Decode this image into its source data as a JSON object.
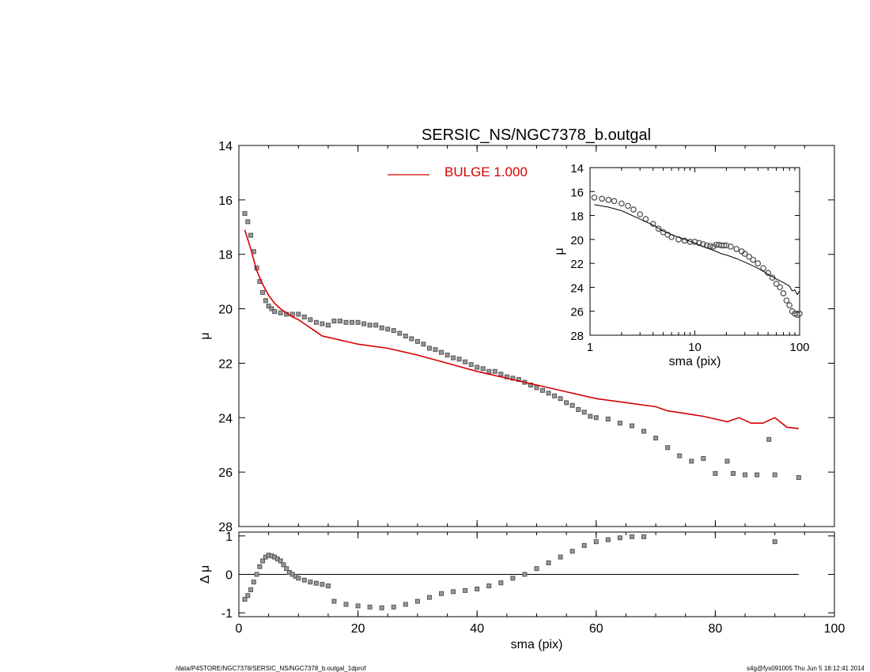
{
  "title": "SERSIC_NS/NGC7378_b.outgal",
  "footer": {
    "left": "/data/P4STORE/NGC7378/SERSIC_NS/NGC7378_b.outgal_1dprof",
    "right": "s4g@fys091005  Thu Jun  5 18:12:41 2014"
  },
  "colors": {
    "model": "#d40000",
    "data": "#555555",
    "axis": "#000000"
  },
  "chart_data": [
    {
      "id": "main",
      "type": "scatter",
      "xlabel": "sma (pix)",
      "ylabel": "μ",
      "xlim": [
        0,
        100
      ],
      "ylim": [
        28,
        14
      ],
      "xticks": [
        0,
        20,
        40,
        60,
        80,
        100
      ],
      "yticks": [
        14,
        16,
        18,
        20,
        22,
        24,
        26,
        28
      ],
      "legend": {
        "position": "top-center",
        "label": "BULGE  1.000"
      },
      "series": [
        {
          "role": "data",
          "style": "square-markers",
          "x": [
            1,
            1.5,
            2,
            2.5,
            3,
            3.5,
            4,
            4.5,
            5,
            5.5,
            6,
            7,
            8,
            9,
            10,
            11,
            12,
            13,
            14,
            15,
            16,
            17,
            18,
            19,
            20,
            21,
            22,
            23,
            24,
            25,
            26,
            27,
            28,
            29,
            30,
            31,
            32,
            33,
            34,
            35,
            36,
            37,
            38,
            39,
            40,
            41,
            42,
            43,
            44,
            45,
            46,
            47,
            48,
            49,
            50,
            51,
            52,
            53,
            54,
            55,
            56,
            57,
            58,
            59,
            60,
            62,
            64,
            66,
            68,
            70,
            72,
            74,
            76,
            78,
            80,
            82,
            83,
            85,
            87,
            89,
            90,
            94
          ],
          "y": [
            16.5,
            16.8,
            17.3,
            17.9,
            18.5,
            19.0,
            19.4,
            19.7,
            19.9,
            20.0,
            20.1,
            20.15,
            20.2,
            20.2,
            20.2,
            20.3,
            20.4,
            20.5,
            20.55,
            20.6,
            20.45,
            20.45,
            20.5,
            20.5,
            20.5,
            20.55,
            20.6,
            20.6,
            20.7,
            20.75,
            20.8,
            20.9,
            21.0,
            21.1,
            21.2,
            21.3,
            21.45,
            21.5,
            21.6,
            21.7,
            21.8,
            21.85,
            21.95,
            22.05,
            22.15,
            22.2,
            22.3,
            22.3,
            22.4,
            22.5,
            22.55,
            22.6,
            22.7,
            22.8,
            22.9,
            23.0,
            23.1,
            23.2,
            23.3,
            23.45,
            23.55,
            23.7,
            23.8,
            23.95,
            24.0,
            24.05,
            24.2,
            24.3,
            24.5,
            24.75,
            25.1,
            25.4,
            25.6,
            25.5,
            26.05,
            25.6,
            26.05,
            26.1,
            26.1,
            24.8,
            26.1,
            26.2
          ]
        },
        {
          "role": "model",
          "style": "line",
          "x": [
            1,
            2,
            3,
            4,
            5,
            6,
            7,
            8,
            9,
            10,
            11,
            12,
            13,
            14,
            15,
            16,
            17,
            18,
            19,
            20,
            25,
            30,
            35,
            40,
            45,
            50,
            55,
            60,
            65,
            70,
            72,
            75,
            78,
            80,
            82,
            84,
            86,
            88,
            90,
            92,
            94
          ],
          "y": [
            17.1,
            17.8,
            18.6,
            19.1,
            19.5,
            19.8,
            20.0,
            20.15,
            20.3,
            20.4,
            20.55,
            20.7,
            20.85,
            21.0,
            21.05,
            21.1,
            21.15,
            21.2,
            21.25,
            21.3,
            21.45,
            21.7,
            22.0,
            22.3,
            22.55,
            22.8,
            23.05,
            23.3,
            23.45,
            23.6,
            23.75,
            23.85,
            23.95,
            24.05,
            24.15,
            24.0,
            24.2,
            24.2,
            24.0,
            24.35,
            24.4
          ]
        }
      ]
    },
    {
      "id": "residual",
      "type": "scatter",
      "xlabel": "sma (pix)",
      "ylabel": "Δ μ",
      "xlim": [
        0,
        100
      ],
      "ylim": [
        -1.1,
        1.1
      ],
      "xticks": [
        0,
        20,
        40,
        60,
        80,
        100
      ],
      "yticks": [
        1,
        0,
        -1
      ],
      "zero_line": true,
      "series": [
        {
          "role": "residual",
          "style": "square-markers",
          "x": [
            1,
            1.5,
            2,
            2.5,
            3,
            3.5,
            4,
            4.5,
            5,
            5.5,
            6,
            6.5,
            7,
            7.5,
            8,
            8.5,
            9,
            9.5,
            10,
            11,
            12,
            13,
            14,
            15,
            16,
            18,
            20,
            22,
            24,
            26,
            28,
            30,
            32,
            34,
            36,
            38,
            40,
            42,
            44,
            46,
            48,
            50,
            52,
            54,
            56,
            58,
            60,
            62,
            64,
            66,
            68,
            90
          ],
          "y": [
            -0.65,
            -0.55,
            -0.4,
            -0.2,
            0,
            0.2,
            0.35,
            0.45,
            0.5,
            0.48,
            0.45,
            0.4,
            0.35,
            0.25,
            0.15,
            0.05,
            0,
            -0.05,
            -0.1,
            -0.15,
            -0.2,
            -0.23,
            -0.26,
            -0.3,
            -0.7,
            -0.78,
            -0.82,
            -0.85,
            -0.87,
            -0.85,
            -0.78,
            -0.7,
            -0.6,
            -0.5,
            -0.45,
            -0.42,
            -0.38,
            -0.3,
            -0.22,
            -0.1,
            0,
            0.15,
            0.3,
            0.45,
            0.6,
            0.75,
            0.85,
            0.9,
            0.95,
            0.98,
            0.98,
            0.85
          ]
        }
      ]
    },
    {
      "id": "inset",
      "type": "scatter",
      "xlabel": "sma (pix)",
      "ylabel": "μ",
      "xscale": "log",
      "xlim": [
        1,
        100
      ],
      "ylim": [
        28,
        14
      ],
      "xticks": [
        1,
        10,
        100
      ],
      "yticks": [
        14,
        16,
        18,
        20,
        22,
        24,
        26,
        28
      ],
      "series": [
        {
          "role": "data",
          "style": "circle-markers",
          "x": [
            1.1,
            1.3,
            1.5,
            1.7,
            2,
            2.3,
            2.6,
            3,
            3.4,
            4,
            4.5,
            5,
            5.5,
            6,
            7,
            8,
            9,
            10,
            11,
            12,
            13,
            14,
            15,
            16,
            17,
            18,
            19,
            20,
            22,
            25,
            28,
            30,
            33,
            36,
            40,
            45,
            50,
            55,
            60,
            65,
            70,
            75,
            80,
            85,
            90,
            95,
            100
          ],
          "y": [
            16.5,
            16.6,
            16.7,
            16.8,
            17.0,
            17.2,
            17.5,
            17.9,
            18.3,
            18.7,
            19.1,
            19.4,
            19.6,
            19.8,
            20.0,
            20.1,
            20.2,
            20.2,
            20.3,
            20.4,
            20.5,
            20.55,
            20.6,
            20.45,
            20.45,
            20.5,
            20.5,
            20.5,
            20.6,
            20.8,
            21.0,
            21.2,
            21.45,
            21.7,
            22.0,
            22.4,
            22.8,
            23.2,
            23.7,
            24.0,
            24.5,
            25.1,
            25.5,
            26.0,
            26.2,
            26.3,
            26.2
          ]
        },
        {
          "role": "model",
          "style": "line",
          "x": [
            1.1,
            1.5,
            2,
            3,
            4,
            5,
            6,
            8,
            10,
            12,
            15,
            16,
            18,
            20,
            25,
            30,
            40,
            50,
            60,
            70,
            80,
            85,
            90,
            95,
            100
          ],
          "y": [
            17.1,
            17.3,
            17.6,
            18.3,
            18.8,
            19.3,
            19.6,
            20.0,
            20.3,
            20.6,
            20.9,
            21.0,
            21.2,
            21.3,
            21.6,
            21.9,
            22.4,
            22.9,
            23.3,
            23.6,
            23.9,
            24.3,
            24.2,
            24.6,
            24.3
          ]
        }
      ]
    }
  ]
}
